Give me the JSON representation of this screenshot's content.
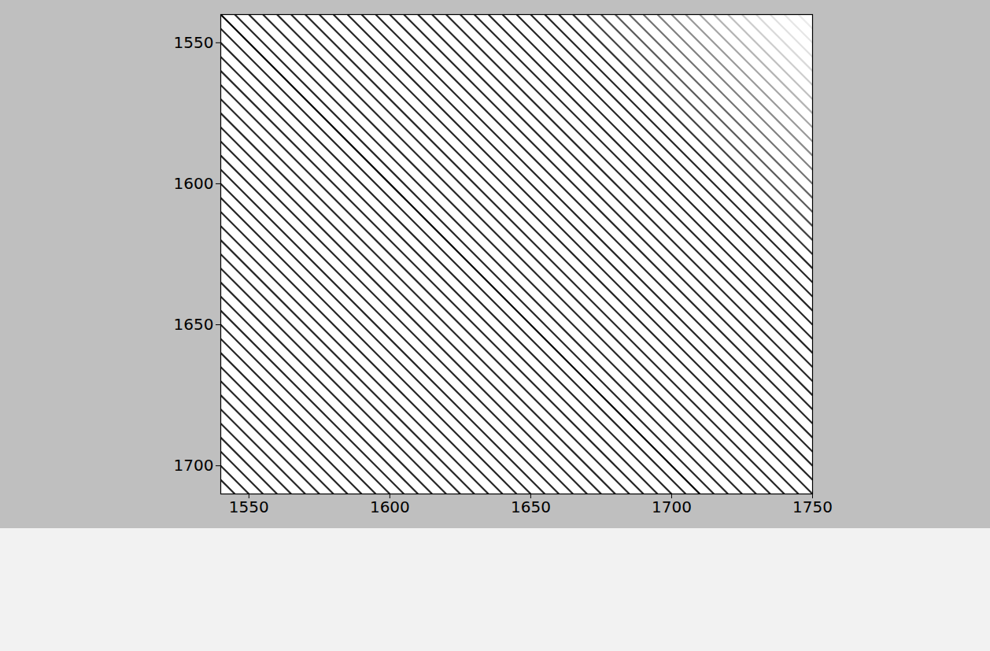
{
  "chart_data": {
    "type": "heatmap",
    "xlim": [
      1540,
      1750
    ],
    "ylim": [
      1540,
      1710
    ],
    "xticks": [
      1550,
      1600,
      1650,
      1700,
      1750
    ],
    "yticks": [
      1550,
      1600,
      1650,
      1700
    ],
    "diagonal_offsets": [
      -165,
      -160,
      -155,
      -150,
      -145,
      -140,
      -135,
      -130,
      -125,
      -120,
      -115,
      -110,
      -105,
      -100,
      -95,
      -90,
      -85,
      -80,
      -75,
      -70,
      -65,
      -60,
      -55,
      -50,
      -45,
      -40,
      -35,
      -30,
      -25,
      -20,
      -15,
      -10,
      -5,
      0,
      5,
      10,
      15,
      20,
      25,
      30,
      35,
      40,
      45,
      50,
      55,
      60,
      65,
      70,
      75,
      80,
      85,
      90,
      95,
      100,
      105,
      110,
      115,
      120,
      125,
      130,
      135,
      140,
      145,
      150,
      155,
      160,
      165,
      170,
      175,
      180,
      185,
      190,
      195,
      200,
      205
    ],
    "diagonal_values": [
      0.85,
      0.85,
      0.85,
      0.85,
      0.85,
      0.85,
      0.85,
      0.85,
      0.85,
      0.85,
      0.85,
      0.85,
      0.85,
      0.85,
      0.85,
      0.85,
      0.85,
      0.85,
      0.85,
      0.85,
      0.85,
      0.85,
      0.85,
      0.85,
      0.85,
      0.85,
      0.85,
      0.85,
      0.85,
      0.85,
      0.85,
      0.85,
      0.85,
      1,
      0.85,
      0.85,
      0.85,
      0.85,
      0.85,
      0.85,
      0.85,
      0.85,
      0.85,
      0.85,
      0.85,
      0.85,
      0.85,
      0.85,
      0.85,
      0.85,
      0.85,
      0.85,
      0.85,
      0.85,
      0.85,
      0.85,
      0.85,
      0.85,
      0.8,
      0.75,
      0.7,
      0.65,
      0.6,
      0.55,
      0.5,
      0.45,
      0.4,
      0.35,
      0.3,
      0.25,
      0.2,
      0.15,
      0.12,
      0.1,
      0.08
    ]
  }
}
